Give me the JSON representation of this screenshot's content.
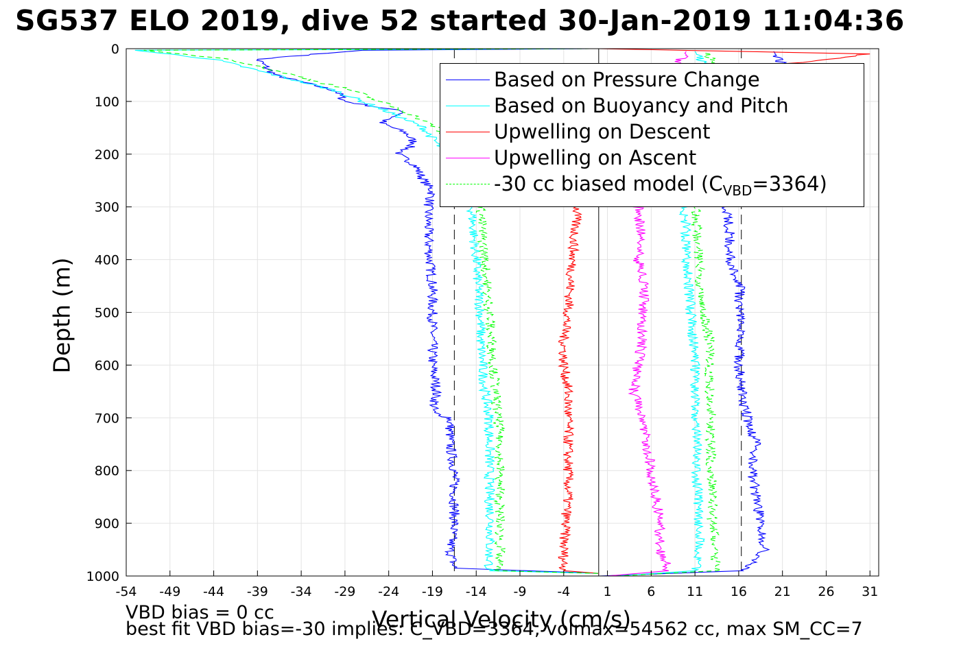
{
  "title": "SG537 ELO 2019, dive 52 started 30-Jan-2019 11:04:36",
  "notes": {
    "line1": "VBD bias = 0 cc",
    "line2": "best fit VBD bias=-30 implies: C_VBD=3364, volmax=54562 cc, max SM_CC=7"
  },
  "chart_data": {
    "type": "line",
    "xlabel": "Vertical Velocity (cm/s)",
    "ylabel": "Depth (m)",
    "xlim": [
      -54,
      32
    ],
    "ylim": [
      0,
      1000
    ],
    "y_reversed": true,
    "xticks": [
      -54,
      -49,
      -44,
      -39,
      -34,
      -29,
      -24,
      -19,
      -14,
      -9,
      -4,
      1,
      6,
      11,
      16,
      21,
      26,
      31
    ],
    "yticks": [
      0,
      100,
      200,
      300,
      400,
      500,
      600,
      700,
      800,
      900,
      1000
    ],
    "grid": true,
    "reference_lines": [
      {
        "x": 0,
        "style": "solid",
        "color": "#000000"
      },
      {
        "x": -16.5,
        "style": "dashed",
        "color": "#000000"
      },
      {
        "x": 16.3,
        "style": "dashed",
        "color": "#000000"
      }
    ],
    "legend_placement": "top-right",
    "series": [
      {
        "name": "Based on Pressure Change",
        "color": "#0000ff",
        "style": "solid",
        "branches": [
          {
            "depth": [
              0,
              3,
              20,
              50,
              80,
              100,
              120,
              140,
              160,
              180,
              200,
              220,
              250,
              270,
              300,
              350,
              400,
              450,
              500,
              550,
              600,
              650,
              690,
              700,
              750,
              800,
              850,
              900,
              950,
              985,
              995
            ],
            "velocity": [
              -1,
              -27,
              -39,
              -37,
              -30,
              -29,
              -22,
              -25,
              -22,
              -21,
              -23,
              -21,
              -20,
              -19,
              -19.5,
              -19.5,
              -19.3,
              -19,
              -19,
              -19,
              -19,
              -18.5,
              -19,
              -17,
              -17,
              -16.5,
              -16.5,
              -16.5,
              -17,
              -16.5,
              0
            ]
          },
          {
            "depth": [
              1000,
              990,
              950,
              900,
              850,
              800,
              750,
              700,
              650,
              600,
              550,
              500,
              450,
              400,
              350,
              300,
              200,
              100,
              30,
              5
            ],
            "velocity": [
              0,
              16.5,
              19,
              18.5,
              18,
              17.5,
              18,
              17,
              16.3,
              16,
              16.3,
              16,
              16.2,
              15,
              15,
              14.5,
              19,
              20.5,
              21,
              20
            ]
          }
        ]
      },
      {
        "name": "Based on Buoyancy and Pitch",
        "color": "#00ffff",
        "style": "solid",
        "branches": [
          {
            "depth": [
              0,
              3,
              20,
              50,
              80,
              100,
              120,
              150,
              180,
              200,
              230,
              270,
              300,
              350,
              400,
              450,
              500,
              550,
              600,
              650,
              700,
              750,
              800,
              850,
              900,
              950,
              990,
              995
            ],
            "velocity": [
              -1,
              -53,
              -44,
              -37,
              -30,
              -27,
              -24,
              -20,
              -18.5,
              -17.5,
              -16.5,
              -15,
              -14.5,
              -14.3,
              -14,
              -13.8,
              -13.5,
              -13.5,
              -13.3,
              -13,
              -12.5,
              -12.5,
              -12.5,
              -12.5,
              -12.3,
              -12.5,
              -12.5,
              0
            ]
          },
          {
            "depth": [
              1000,
              990,
              950,
              900,
              850,
              800,
              750,
              700,
              650,
              600,
              550,
              500,
              450,
              400,
              350,
              300,
              200,
              100,
              30,
              5
            ],
            "velocity": [
              2,
              11,
              11.5,
              11.5,
              11.3,
              11.2,
              11.2,
              11,
              11,
              11,
              10.8,
              10.5,
              10.3,
              10,
              10,
              9.8,
              11,
              12,
              12,
              11
            ]
          }
        ]
      },
      {
        "name": "Upwelling on Descent",
        "color": "#ff0000",
        "style": "solid",
        "branches": [
          {
            "depth": [
              0,
              10,
              30,
              60,
              100,
              200,
              300,
              400,
              500,
              550,
              600,
              650,
              700,
              750,
              800,
              850,
              900,
              950,
              990,
              995
            ],
            "velocity": [
              0,
              31,
              21,
              10,
              5,
              0,
              -2.5,
              -3,
              -3.5,
              -4,
              -4,
              -3.5,
              -3.5,
              -3.5,
              -3.5,
              -3.5,
              -3.8,
              -4,
              -4,
              0
            ]
          }
        ]
      },
      {
        "name": "Upwelling on Ascent",
        "color": "#ff00ff",
        "style": "solid",
        "branches": [
          {
            "depth": [
              1000,
              990,
              950,
              900,
              850,
              800,
              750,
              700,
              650,
              600,
              550,
              500,
              450,
              400,
              350,
              300,
              200,
              100,
              30,
              5
            ],
            "velocity": [
              1,
              8,
              7,
              7,
              6.5,
              6,
              5.5,
              5,
              4,
              4.5,
              5,
              5,
              5.3,
              4.5,
              4.8,
              4.5,
              7,
              8,
              9,
              10
            ]
          }
        ]
      },
      {
        "name": "-30 cc biased model (C_VBD=3364)",
        "color": "#00ff00",
        "style": "dashed",
        "branches": [
          {
            "depth": [
              0,
              3,
              20,
              50,
              80,
              100,
              120,
              150,
              180,
              200,
              230,
              270,
              300,
              350,
              400,
              450,
              500,
              550,
              600,
              650,
              700,
              750,
              800,
              850,
              900,
              950,
              990,
              995
            ],
            "velocity": [
              -1,
              -52,
              -42,
              -35,
              -28,
              -25,
              -22,
              -18.5,
              -17,
              -16,
              -15,
              -14,
              -13.5,
              -13.3,
              -13,
              -12.8,
              -12.5,
              -12.3,
              -12,
              -11.8,
              -11.5,
              -11.3,
              -11.3,
              -11.3,
              -11.3,
              -11.3,
              -11.5,
              0
            ]
          },
          {
            "depth": [
              1000,
              990,
              950,
              900,
              850,
              800,
              750,
              700,
              650,
              600,
              550,
              500,
              450,
              400,
              350,
              300,
              200,
              100,
              30,
              5
            ],
            "velocity": [
              2,
              13.5,
              13.3,
              13,
              13,
              12.8,
              12.8,
              12.8,
              12.6,
              12.6,
              12.6,
              12,
              11.5,
              11.5,
              11.2,
              11,
              12,
              13,
              13.5,
              12
            ]
          }
        ]
      }
    ],
    "legend_entries": [
      {
        "label": "Based on Pressure Change",
        "color": "#0000ff",
        "style": "solid"
      },
      {
        "label": "Based on Buoyancy and Pitch",
        "color": "#00ffff",
        "style": "solid"
      },
      {
        "label": "Upwelling on Descent",
        "color": "#ff0000",
        "style": "solid"
      },
      {
        "label": "Upwelling on Ascent",
        "color": "#ff00ff",
        "style": "solid"
      },
      {
        "label_prefix": "-30 cc biased model (C",
        "label_sub": "VBD",
        "label_suffix": "=3364)",
        "color": "#00ff00",
        "style": "dashed"
      }
    ]
  }
}
